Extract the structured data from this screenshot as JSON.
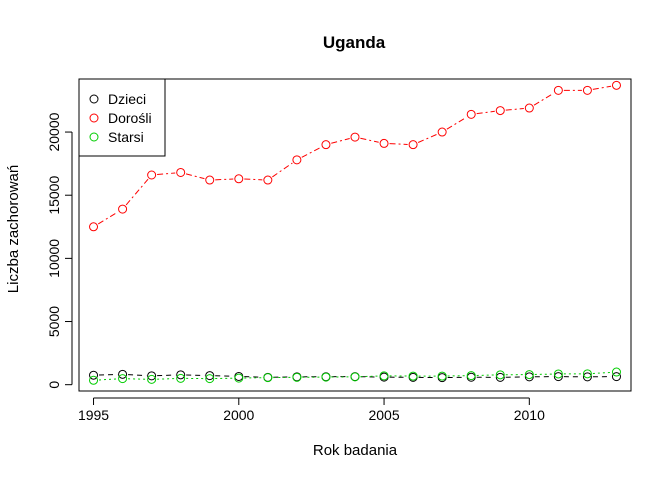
{
  "chart_data": {
    "type": "line",
    "title": "Uganda",
    "xlabel": "Rok badania",
    "ylabel": "Liczba zachorowań",
    "xlim": [
      1994.5,
      2013.5
    ],
    "ylim": [
      -500,
      24200
    ],
    "xticks": [
      1995,
      2000,
      2005,
      2010
    ],
    "yticks": [
      0,
      5000,
      10000,
      15000,
      20000
    ],
    "x": [
      1995,
      1996,
      1997,
      1998,
      1999,
      2000,
      2001,
      2002,
      2003,
      2004,
      2005,
      2006,
      2007,
      2008,
      2009,
      2010,
      2011,
      2012,
      2013
    ],
    "legend_position": "top-left",
    "grid": false,
    "series": [
      {
        "name": "Dzieci",
        "color": "#000000",
        "line_style": "dashed",
        "values": [
          750,
          820,
          700,
          780,
          720,
          650,
          580,
          620,
          630,
          640,
          600,
          580,
          560,
          590,
          580,
          620,
          640,
          620,
          640
        ]
      },
      {
        "name": "Dorośli",
        "color": "#ff0000",
        "line_style": "dashdot",
        "values": [
          12500,
          13900,
          16600,
          16800,
          16200,
          16300,
          16200,
          17800,
          19000,
          19600,
          19100,
          19000,
          20000,
          21400,
          21700,
          21900,
          23300,
          23300,
          23700
        ]
      },
      {
        "name": "Starsi",
        "color": "#00cd00",
        "line_style": "dotted",
        "values": [
          350,
          480,
          420,
          500,
          480,
          520,
          560,
          580,
          600,
          620,
          700,
          680,
          680,
          720,
          780,
          800,
          850,
          860,
          1000
        ]
      }
    ]
  }
}
